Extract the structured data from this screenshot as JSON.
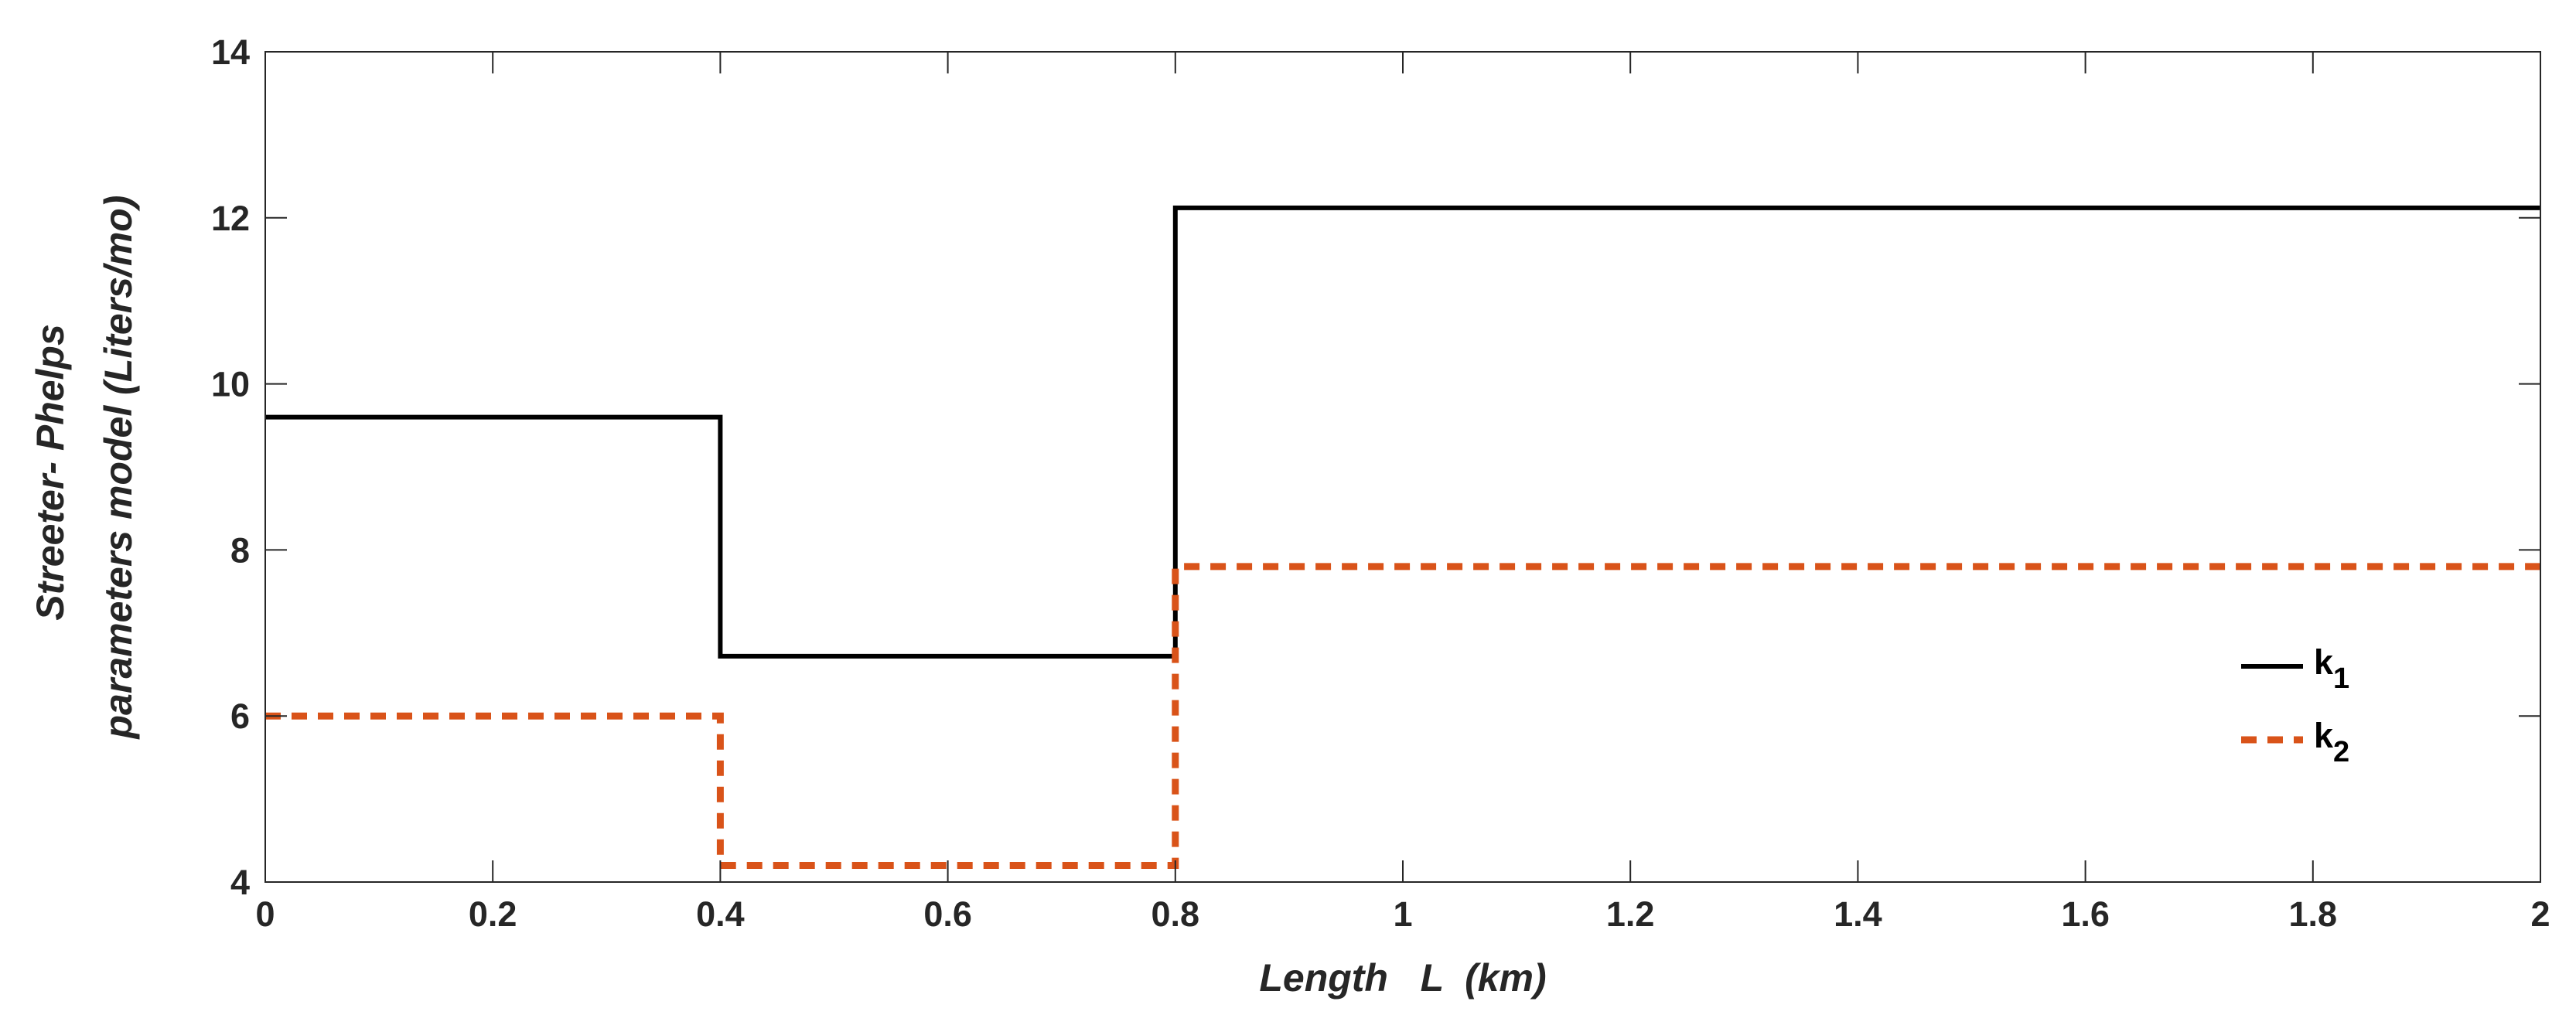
{
  "chart_data": {
    "type": "line",
    "xlabel": "Length   L  (km)",
    "ylabel_lines": [
      "Streeter- Phelps",
      "parameters model (Liters/mo)"
    ],
    "xlim": [
      0,
      2
    ],
    "ylim": [
      4,
      14
    ],
    "xticks": [
      0,
      0.2,
      0.4,
      0.6,
      0.8,
      1,
      1.2,
      1.4,
      1.6,
      1.8,
      2
    ],
    "xtick_labels": [
      "0",
      "0.2",
      "0.4",
      "0.6",
      "0.8",
      "1",
      "1.2",
      "1.4",
      "1.6",
      "1.8",
      "2"
    ],
    "yticks": [
      4,
      6,
      8,
      10,
      12,
      14
    ],
    "ytick_labels": [
      "4",
      "6",
      "8",
      "10",
      "12",
      "14"
    ],
    "grid": false,
    "legend_position": "right",
    "series": [
      {
        "name": "k1",
        "label_main": "k",
        "label_sub": "1",
        "color": "#000000",
        "style": "solid",
        "x": [
          0,
          0.4,
          0.4,
          0.8,
          0.8,
          2
        ],
        "y": [
          9.6,
          9.6,
          6.72,
          6.72,
          12.12,
          12.12
        ]
      },
      {
        "name": "k2",
        "label_main": "k",
        "label_sub": "2",
        "color": "#D95319",
        "style": "dashed",
        "x": [
          0,
          0.4,
          0.4,
          0.8,
          0.8,
          2
        ],
        "y": [
          6.0,
          6.0,
          4.2,
          4.2,
          7.8,
          7.8
        ]
      }
    ]
  }
}
